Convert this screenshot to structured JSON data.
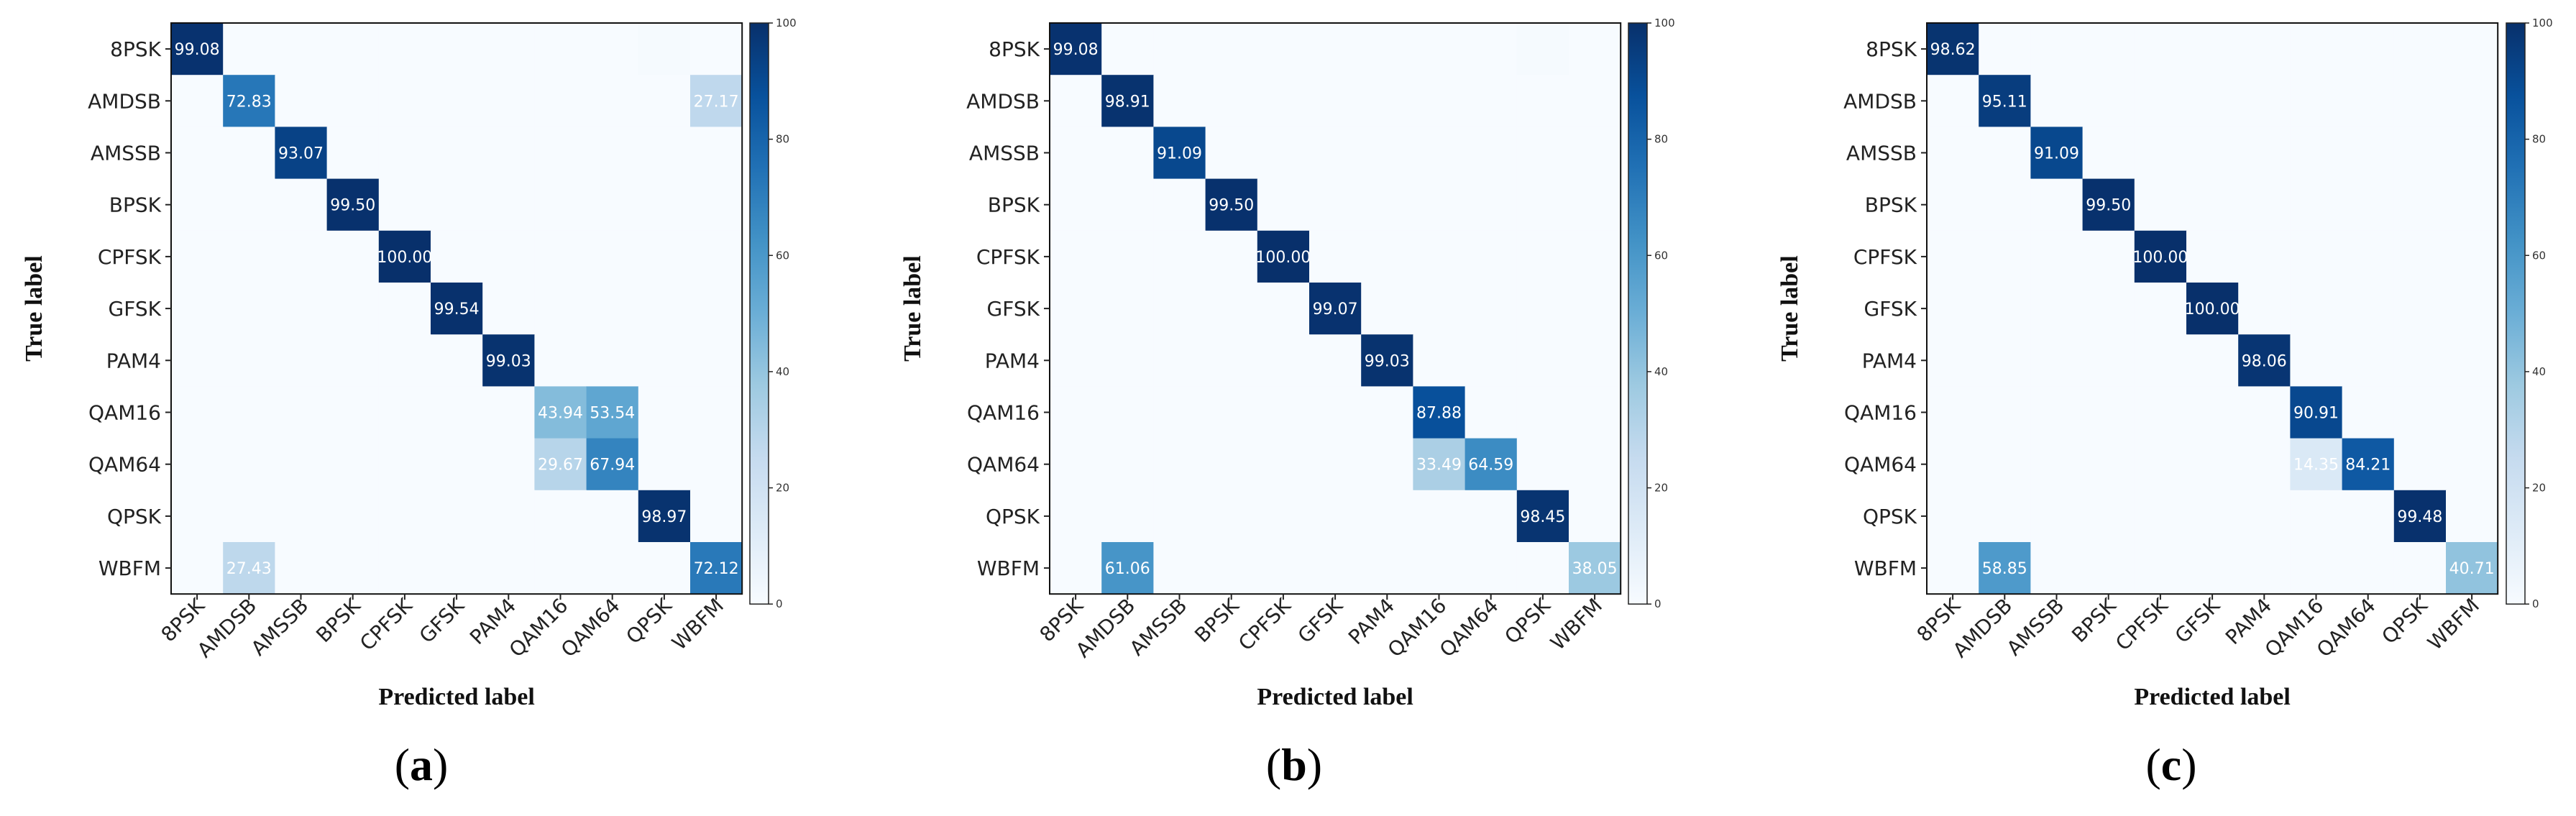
{
  "chart_data": [
    {
      "type": "heatmap",
      "id": "a",
      "caption_letter": "a",
      "xlabel": "Predicted label",
      "ylabel": "True label",
      "classes": [
        "8PSK",
        "AMDSB",
        "AMSSB",
        "BPSK",
        "CPFSK",
        "GFSK",
        "PAM4",
        "QAM16",
        "QAM64",
        "QPSK",
        "WBFM"
      ],
      "colorbar": {
        "min": 0,
        "max": 100,
        "ticks": [
          0,
          20,
          40,
          60,
          80,
          100
        ]
      },
      "values": [
        [
          99.08,
          0,
          0,
          0,
          0,
          0,
          0,
          0,
          0,
          0.92,
          0
        ],
        [
          0,
          72.83,
          0,
          0,
          0,
          0,
          0,
          0,
          0,
          0,
          27.17
        ],
        [
          0,
          0,
          93.07,
          0,
          0,
          0,
          0,
          0,
          0,
          0,
          0
        ],
        [
          0,
          0,
          0,
          99.5,
          0,
          0,
          0,
          0,
          0,
          0,
          0
        ],
        [
          0,
          0,
          0,
          0,
          100.0,
          0,
          0,
          0,
          0,
          0,
          0
        ],
        [
          0,
          0,
          0,
          0,
          0,
          99.54,
          0,
          0,
          0,
          0,
          0
        ],
        [
          0,
          0,
          0,
          0,
          0,
          0,
          99.03,
          0,
          0,
          0,
          0
        ],
        [
          0,
          0,
          0,
          0,
          0,
          0,
          0,
          43.94,
          53.54,
          0,
          0
        ],
        [
          0,
          0,
          0,
          0,
          0,
          0,
          0,
          29.67,
          67.94,
          0,
          0
        ],
        [
          0,
          0,
          0,
          0,
          0,
          0,
          0,
          0,
          0,
          98.97,
          0
        ],
        [
          0,
          27.43,
          0,
          0,
          0,
          0,
          0,
          0,
          0,
          0,
          72.12
        ]
      ]
    },
    {
      "type": "heatmap",
      "id": "b",
      "caption_letter": "b",
      "xlabel": "Predicted label",
      "ylabel": "True label",
      "classes": [
        "8PSK",
        "AMDSB",
        "AMSSB",
        "BPSK",
        "CPFSK",
        "GFSK",
        "PAM4",
        "QAM16",
        "QAM64",
        "QPSK",
        "WBFM"
      ],
      "colorbar": {
        "min": 0,
        "max": 100,
        "ticks": [
          0,
          20,
          40,
          60,
          80,
          100
        ]
      },
      "values": [
        [
          99.08,
          0,
          0,
          0,
          0,
          0,
          0,
          0,
          0,
          0.92,
          0
        ],
        [
          0,
          98.91,
          0,
          0,
          0,
          0,
          0,
          0,
          0,
          0,
          0
        ],
        [
          0,
          0,
          91.09,
          0,
          0,
          0,
          0,
          0,
          0,
          0,
          0
        ],
        [
          0,
          0,
          0,
          99.5,
          0,
          0,
          0,
          0,
          0,
          0,
          0
        ],
        [
          0,
          0,
          0,
          0,
          100.0,
          0,
          0,
          0,
          0,
          0,
          0
        ],
        [
          0,
          0,
          0,
          0,
          0,
          99.07,
          0,
          0,
          0,
          0,
          0
        ],
        [
          0,
          0,
          0,
          0,
          0,
          0,
          99.03,
          0,
          0,
          0,
          0
        ],
        [
          0,
          0,
          0,
          0,
          0,
          0,
          0,
          87.88,
          0,
          0,
          0
        ],
        [
          0,
          0,
          0,
          0,
          0,
          0,
          0,
          33.49,
          64.59,
          0,
          0
        ],
        [
          0,
          0,
          0,
          0,
          0,
          0,
          0,
          0,
          0,
          98.45,
          0
        ],
        [
          0,
          61.06,
          0,
          0,
          0,
          0,
          0,
          0,
          0,
          0,
          38.05
        ]
      ]
    },
    {
      "type": "heatmap",
      "id": "c",
      "caption_letter": "c",
      "xlabel": "Predicted label",
      "ylabel": "True label",
      "classes": [
        "8PSK",
        "AMDSB",
        "AMSSB",
        "BPSK",
        "CPFSK",
        "GFSK",
        "PAM4",
        "QAM16",
        "QAM64",
        "QPSK",
        "WBFM"
      ],
      "colorbar": {
        "min": 0,
        "max": 100,
        "ticks": [
          0,
          20,
          40,
          60,
          80,
          100
        ]
      },
      "values": [
        [
          98.62,
          0,
          0,
          0,
          0,
          0,
          0,
          0,
          0,
          0,
          0
        ],
        [
          0,
          95.11,
          0,
          0,
          0,
          0,
          0,
          0,
          0,
          0,
          0
        ],
        [
          0,
          0,
          91.09,
          0,
          0,
          0,
          0,
          0,
          0,
          0,
          0
        ],
        [
          0,
          0,
          0,
          99.5,
          0,
          0,
          0,
          0,
          0,
          0,
          0
        ],
        [
          0,
          0,
          0,
          0,
          100.0,
          0,
          0,
          0,
          0,
          0,
          0
        ],
        [
          0,
          0,
          0,
          0,
          0,
          100.0,
          0,
          0,
          0,
          0,
          0
        ],
        [
          0,
          0,
          0,
          0,
          0,
          0,
          98.06,
          0,
          0,
          0,
          0
        ],
        [
          0,
          0,
          0,
          0,
          0,
          0,
          0,
          90.91,
          0,
          0,
          0
        ],
        [
          0,
          0,
          0,
          0,
          0,
          0,
          0,
          14.35,
          84.21,
          0,
          0
        ],
        [
          0,
          0,
          0,
          0,
          0,
          0,
          0,
          0,
          0,
          99.48,
          0
        ],
        [
          0,
          58.85,
          0,
          0,
          0,
          0,
          0,
          0,
          0,
          0,
          40.71
        ]
      ]
    }
  ]
}
